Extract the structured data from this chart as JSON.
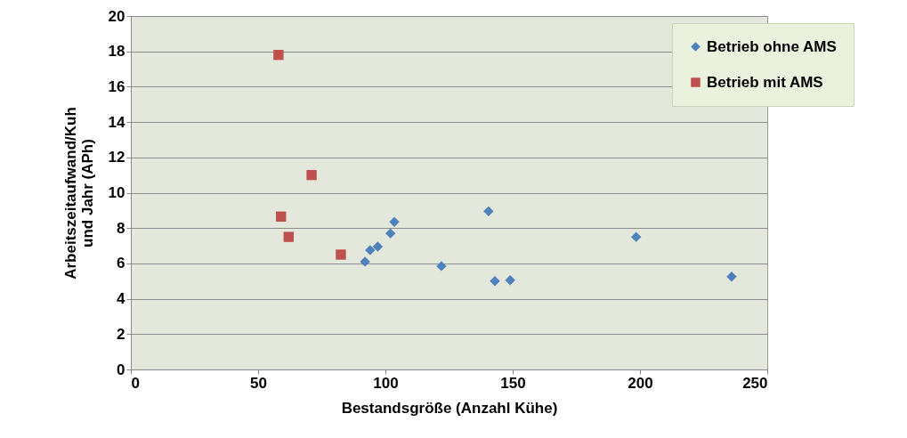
{
  "chart_data": {
    "type": "scatter",
    "xlabel": "Bestandsgröße (Anzahl Kühe)",
    "ylabel": "Arbeitszeitaufwand/Kuh und Jahr (APh)",
    "xlim": [
      0,
      250
    ],
    "xticks": [
      0,
      50,
      100,
      150,
      200,
      250
    ],
    "ylim": [
      0,
      20
    ],
    "yticks": [
      0,
      2,
      4,
      6,
      8,
      10,
      12,
      14,
      16,
      18,
      20
    ],
    "grid": "y",
    "legend": "top right",
    "series": [
      {
        "name": "Betrieb ohne AMS",
        "color": "#4f81bd",
        "marker": "diamond",
        "x": [
          92,
          94,
          97,
          102,
          103.5,
          122,
          140.5,
          143,
          149,
          198.5,
          236
        ],
        "values": [
          6.1,
          6.75,
          6.95,
          7.7,
          8.35,
          5.85,
          8.95,
          5.0,
          5.05,
          7.5,
          5.25
        ]
      },
      {
        "name": "Betrieb mit AMS",
        "color": "#c0504d",
        "marker": "square",
        "x": [
          58,
          71,
          59,
          62,
          82.5
        ],
        "values": [
          17.8,
          11,
          8.65,
          7.5,
          6.5
        ]
      }
    ]
  }
}
